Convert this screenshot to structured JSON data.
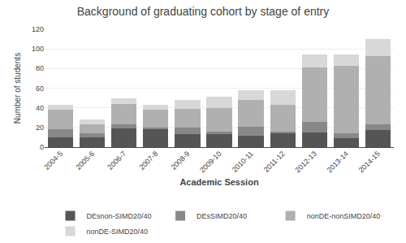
{
  "chart_data": {
    "type": "bar",
    "stacked": true,
    "title": "Background of graduating cohort by stage of entry",
    "xlabel": "Academic Session",
    "ylabel": "Number of students",
    "categories": [
      "2004-5",
      "2005-6",
      "2006-7",
      "2007-8",
      "2008-9",
      "2009-10",
      "2010-11",
      "2011-12",
      "2012-13",
      "2013-14",
      "2014-15"
    ],
    "series": [
      {
        "name": "DEsnon-SIMD20/40",
        "color": "#555555",
        "values": [
          10,
          10,
          19,
          18,
          13,
          13,
          12,
          14,
          15,
          9,
          17
        ]
      },
      {
        "name": "DEsSIMD20/40",
        "color": "#888888",
        "values": [
          8,
          4,
          4,
          2,
          7,
          3,
          9,
          2,
          11,
          5,
          6
        ]
      },
      {
        "name": "nonDE-nonSIMD20/40",
        "color": "#b0b0b0",
        "values": [
          20,
          9,
          21,
          18,
          19,
          24,
          27,
          27,
          55,
          69,
          70
        ]
      },
      {
        "name": "nonDE-SIMD20/40",
        "color": "#d8d8d8",
        "values": [
          5,
          5,
          6,
          5,
          9,
          11,
          10,
          15,
          13,
          11,
          17
        ]
      }
    ],
    "ylim": [
      0,
      120
    ],
    "yticks": [
      0,
      20,
      40,
      60,
      80,
      100,
      120
    ],
    "grid": true,
    "legend": "bottom"
  }
}
